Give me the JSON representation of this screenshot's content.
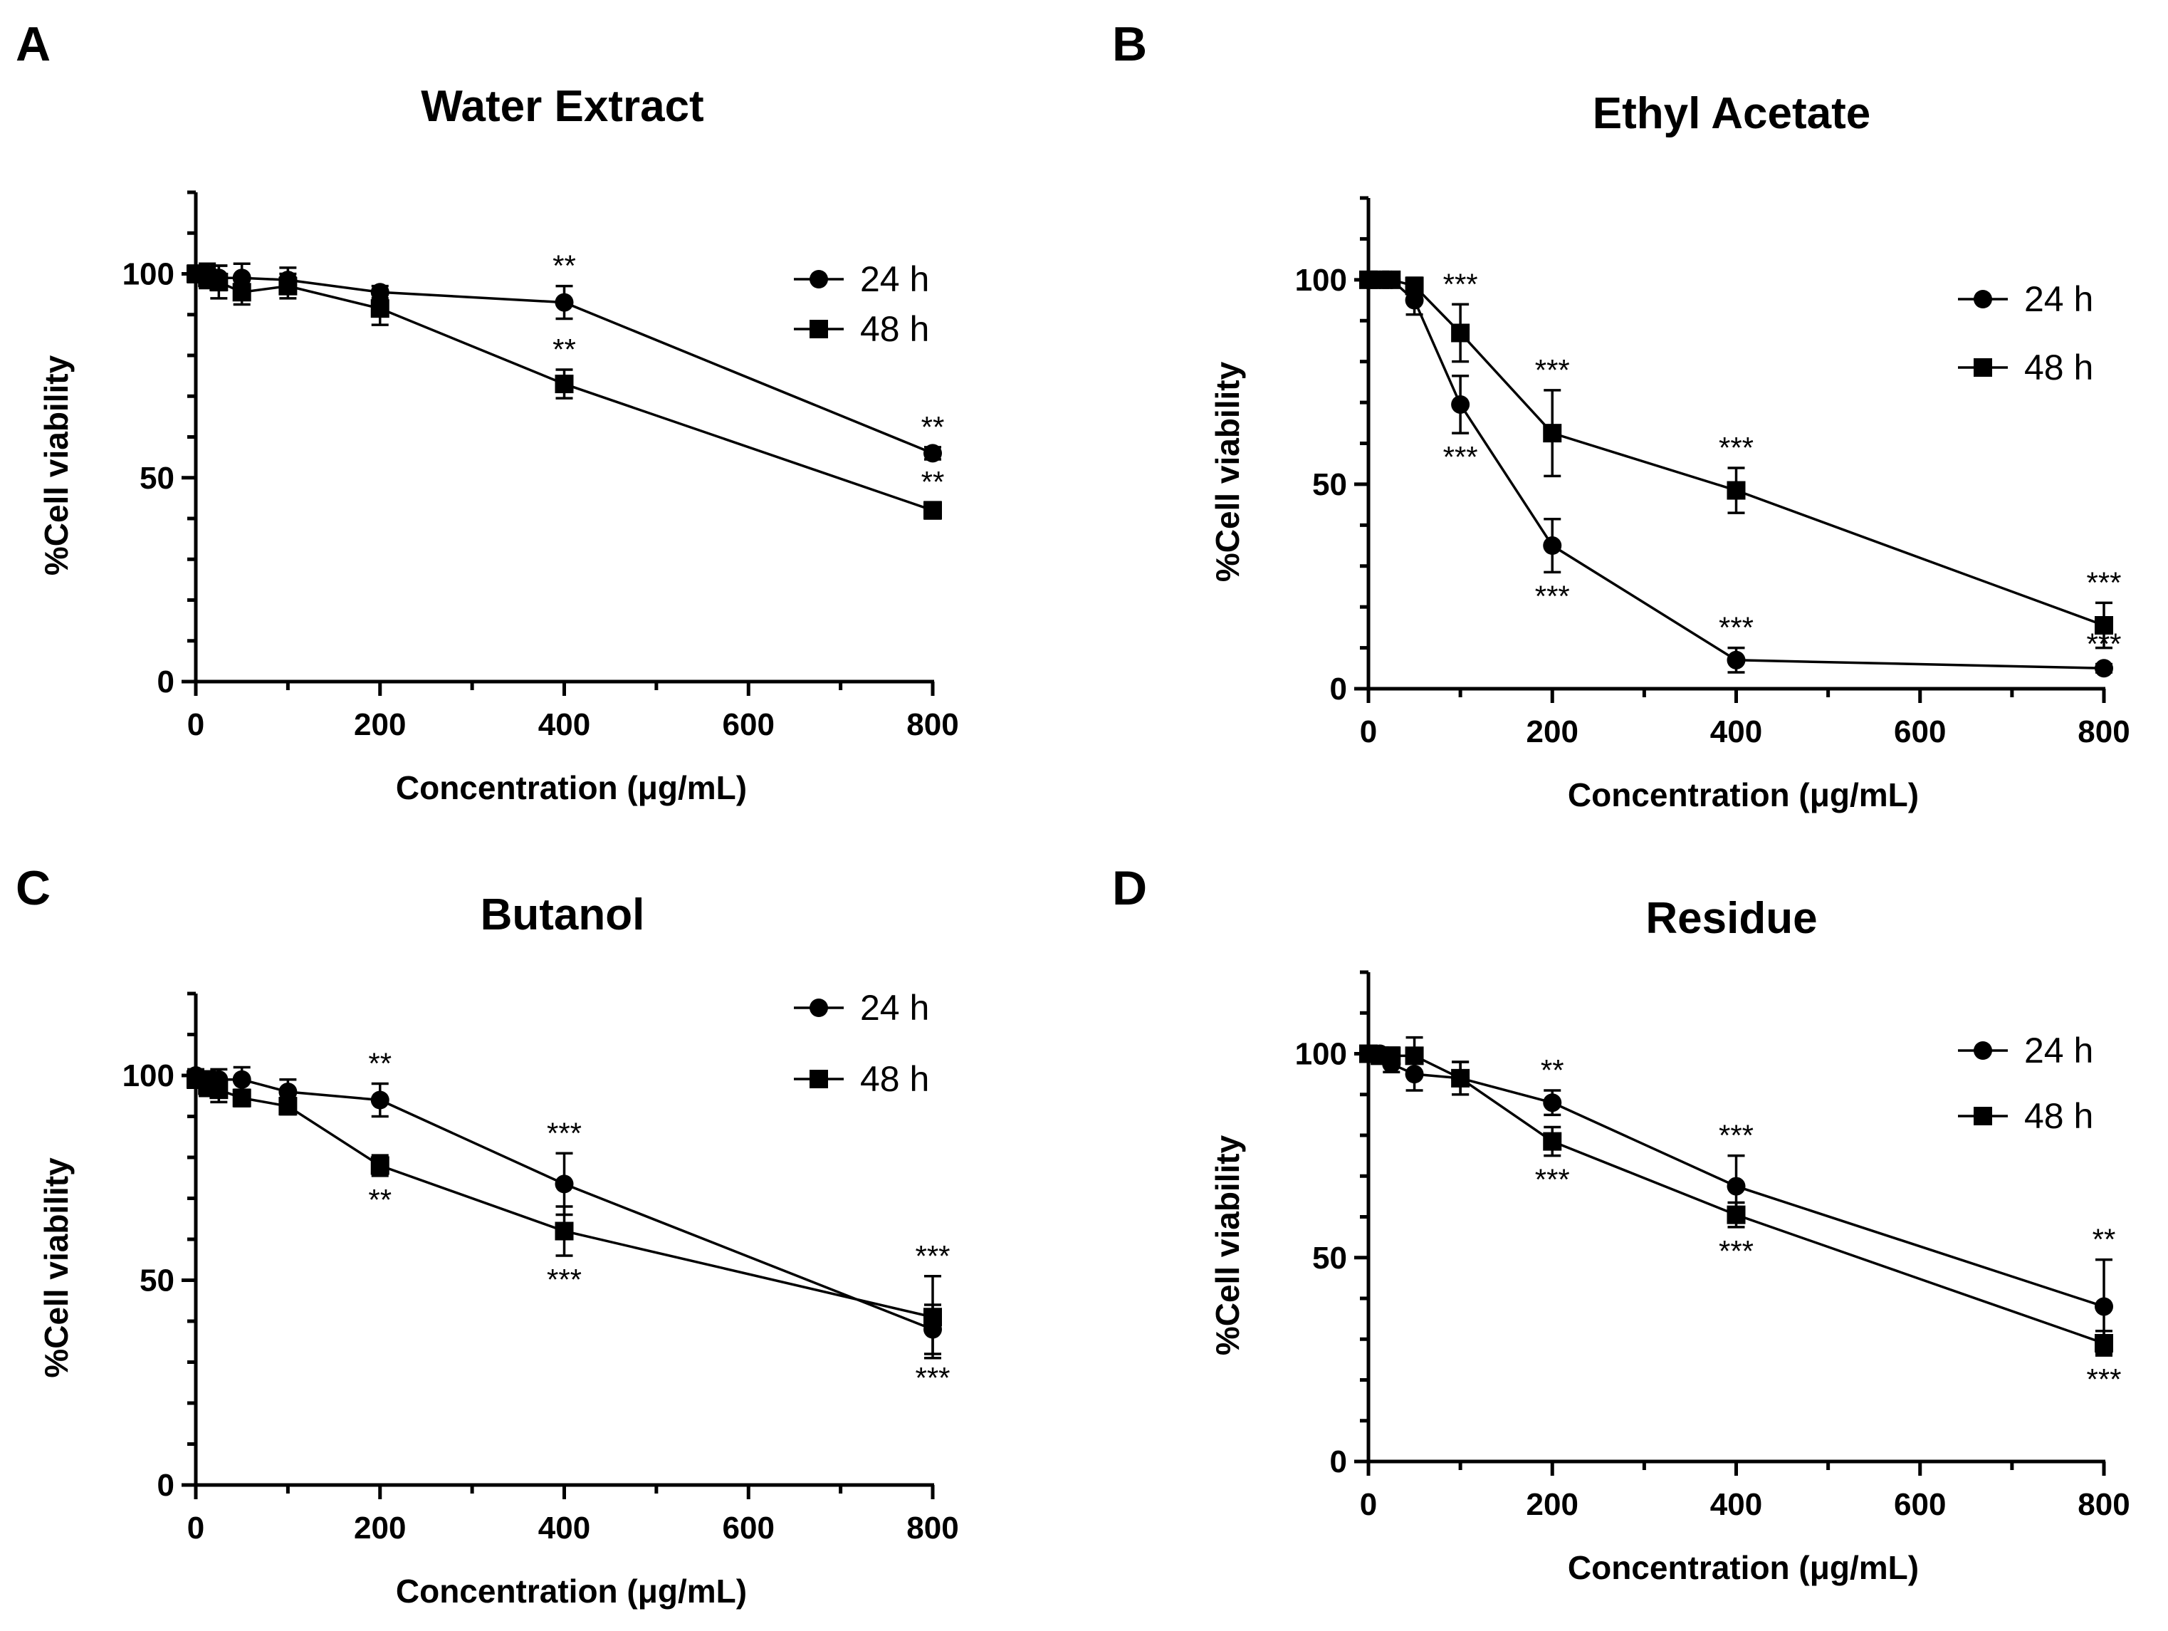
{
  "chart_data": [
    {
      "panel": "A",
      "type": "line",
      "title": "Water Extract",
      "xlabel": "Concentration (μg/mL)",
      "ylabel": "%Cell viability",
      "xlim": [
        0,
        800
      ],
      "ylim": [
        0,
        120
      ],
      "xticks": [
        0,
        200,
        400,
        600,
        800
      ],
      "yticks": [
        0,
        50,
        100
      ],
      "legend_position": "top-right",
      "series": [
        {
          "name": "24 h",
          "marker": "circle",
          "x": [
            0,
            12.5,
            25,
            50,
            100,
            200,
            400,
            800
          ],
          "y": [
            100,
            100,
            99,
            99,
            98.5,
            95.5,
            93,
            56
          ],
          "err": [
            2,
            2.5,
            3,
            3.5,
            3,
            1.5,
            4,
            1.5
          ],
          "sig": [
            {
              "x": 400,
              "text": "**",
              "side": "above"
            },
            {
              "x": 800,
              "text": "**",
              "side": "above"
            }
          ]
        },
        {
          "name": "48 h",
          "marker": "square",
          "x": [
            0,
            12.5,
            25,
            50,
            100,
            200,
            400,
            800
          ],
          "y": [
            100,
            99,
            98,
            95.5,
            97,
            91.5,
            73,
            42
          ],
          "err": [
            2,
            2.5,
            4,
            3,
            3,
            4,
            3.5,
            2
          ],
          "sig": [
            {
              "x": 400,
              "text": "**",
              "side": "above"
            },
            {
              "x": 800,
              "text": "**",
              "side": "above"
            }
          ]
        }
      ]
    },
    {
      "panel": "B",
      "type": "line",
      "title": "Ethyl Acetate",
      "xlabel": "Concentration (μg/mL)",
      "ylabel": "%Cell viability",
      "xlim": [
        0,
        800
      ],
      "ylim": [
        0,
        120
      ],
      "xticks": [
        0,
        200,
        400,
        600,
        800
      ],
      "yticks": [
        0,
        50,
        100
      ],
      "legend_position": "top-right",
      "series": [
        {
          "name": "24 h",
          "marker": "circle",
          "x": [
            0,
            12.5,
            25,
            50,
            100,
            200,
            400,
            800
          ],
          "y": [
            100,
            100,
            100,
            95,
            69.5,
            35,
            7,
            5
          ],
          "err": [
            1,
            1,
            1,
            3.5,
            7,
            6.5,
            3,
            1
          ],
          "sig": [
            {
              "x": 100,
              "text": "***",
              "side": "below"
            },
            {
              "x": 200,
              "text": "***",
              "side": "below"
            },
            {
              "x": 400,
              "text": "***",
              "side": "above"
            },
            {
              "x": 800,
              "text": "***",
              "side": "above"
            }
          ]
        },
        {
          "name": "48 h",
          "marker": "square",
          "x": [
            0,
            12.5,
            25,
            50,
            100,
            200,
            400,
            800
          ],
          "y": [
            100,
            100,
            100,
            98.5,
            87,
            62.5,
            48.5,
            15.5
          ],
          "err": [
            1,
            1,
            1,
            2,
            7,
            10.5,
            5.5,
            5.5
          ],
          "sig": [
            {
              "x": 100,
              "text": "***",
              "side": "above"
            },
            {
              "x": 200,
              "text": "***",
              "side": "above"
            },
            {
              "x": 400,
              "text": "***",
              "side": "above"
            },
            {
              "x": 800,
              "text": "***",
              "side": "above"
            }
          ]
        }
      ]
    },
    {
      "panel": "C",
      "type": "line",
      "title": "Butanol",
      "xlabel": "Concentration (μg/mL)",
      "ylabel": "%Cell viability",
      "xlim": [
        0,
        800
      ],
      "ylim": [
        0,
        120
      ],
      "xticks": [
        0,
        200,
        400,
        600,
        800
      ],
      "yticks": [
        0,
        50,
        100
      ],
      "legend_position": "top-right",
      "series": [
        {
          "name": "24 h",
          "marker": "circle",
          "x": [
            0,
            12.5,
            25,
            50,
            100,
            200,
            400,
            800
          ],
          "y": [
            100,
            99,
            99,
            99,
            96,
            94,
            73.5,
            38
          ],
          "err": [
            1.5,
            2,
            2.5,
            3,
            3,
            4,
            7.5,
            6
          ],
          "sig": [
            {
              "x": 200,
              "text": "**",
              "side": "above"
            },
            {
              "x": 400,
              "text": "***",
              "side": "above"
            },
            {
              "x": 800,
              "text": "***",
              "side": "below"
            }
          ]
        },
        {
          "name": "48 h",
          "marker": "square",
          "x": [
            0,
            12.5,
            25,
            50,
            100,
            200,
            400,
            800
          ],
          "y": [
            99,
            97.5,
            96.5,
            94.5,
            92.5,
            78,
            62,
            41
          ],
          "err": [
            2,
            2.5,
            3,
            2,
            2,
            2.5,
            6,
            10
          ],
          "sig": [
            {
              "x": 200,
              "text": "**",
              "side": "below"
            },
            {
              "x": 400,
              "text": "***",
              "side": "below"
            },
            {
              "x": 800,
              "text": "***",
              "side": "above"
            }
          ]
        }
      ]
    },
    {
      "panel": "D",
      "type": "line",
      "title": "Residue",
      "xlabel": "Concentration (μg/mL)",
      "ylabel": "%Cell viability",
      "xlim": [
        0,
        800
      ],
      "ylim": [
        0,
        120
      ],
      "xticks": [
        0,
        200,
        400,
        600,
        800
      ],
      "yticks": [
        0,
        50,
        100
      ],
      "legend_position": "top-right",
      "series": [
        {
          "name": "24 h",
          "marker": "circle",
          "x": [
            0,
            12.5,
            25,
            50,
            100,
            200,
            400,
            800
          ],
          "y": [
            100,
            100,
            97.5,
            95,
            94,
            88,
            67.5,
            38
          ],
          "err": [
            1,
            1.5,
            2,
            4,
            4,
            3,
            7.5,
            11.5
          ],
          "sig": [
            {
              "x": 200,
              "text": "**",
              "side": "above"
            },
            {
              "x": 400,
              "text": "***",
              "side": "above"
            },
            {
              "x": 800,
              "text": "**",
              "side": "above"
            }
          ]
        },
        {
          "name": "48 h",
          "marker": "square",
          "x": [
            0,
            12.5,
            25,
            50,
            100,
            200,
            400,
            800
          ],
          "y": [
            100,
            99.5,
            99.5,
            99.5,
            94,
            78.5,
            60.5,
            29
          ],
          "err": [
            1,
            1.5,
            2,
            4.5,
            4,
            3.5,
            3,
            3
          ],
          "sig": [
            {
              "x": 200,
              "text": "***",
              "side": "below"
            },
            {
              "x": 400,
              "text": "***",
              "side": "below"
            },
            {
              "x": 800,
              "text": "***",
              "side": "below"
            }
          ]
        }
      ]
    }
  ]
}
